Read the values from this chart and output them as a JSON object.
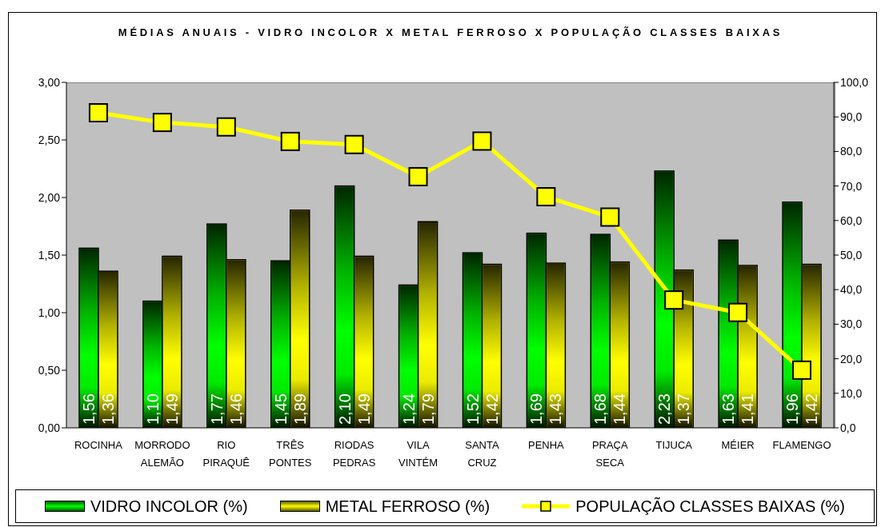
{
  "chart_data": {
    "type": "bar",
    "title": "MÉDIAS ANUAIS - VIDRO INCOLOR X METAL FERROSO X POPULAÇÃO CLASSES BAIXAS",
    "categories": [
      "ROCINHA",
      "MORRODO ALEMÃO",
      "RIO PIRAQUÊ",
      "TRÊS PONTES",
      "RIODAS PEDRAS",
      "VILA VINTÉM",
      "SANTA CRUZ",
      "PENHA",
      "PRAÇA SECA",
      "TIJUCA",
      "MÉIER",
      "FLAMENGO"
    ],
    "series": [
      {
        "name": "VIDRO INCOLOR (%)",
        "color": "#00ff00",
        "values": [
          1.56,
          1.1,
          1.77,
          1.45,
          2.1,
          1.24,
          1.52,
          1.69,
          1.68,
          2.23,
          1.63,
          1.96
        ],
        "value_labels": [
          "1,56",
          "1,10",
          "1,77",
          "1,45",
          "2,10",
          "1,24",
          "1,52",
          "1,69",
          "1,68",
          "2,23",
          "1,63",
          "1,96"
        ]
      },
      {
        "name": "METAL FERROSO (%)",
        "color": "#ffff00",
        "values": [
          1.36,
          1.49,
          1.46,
          1.89,
          1.49,
          1.79,
          1.42,
          1.43,
          1.44,
          1.37,
          1.41,
          1.42
        ],
        "value_labels": [
          "1,36",
          "1,49",
          "1,46",
          "1,89",
          "1,49",
          "1,79",
          "1,42",
          "1,43",
          "1,44",
          "1,37",
          "1,41",
          "1,42"
        ]
      },
      {
        "name": "POPULAÇÃO CLASSES BAIXAS (%)",
        "type": "line",
        "axis": "y2",
        "color": "#ffff00",
        "marker": "square",
        "values": [
          91.2,
          88.4,
          87.1,
          82.9,
          82.0,
          72.7,
          83.0,
          66.9,
          61.0,
          37.0,
          33.4,
          16.7
        ]
      }
    ],
    "ylim": [
      0,
      3
    ],
    "yticks": [
      {
        "value": 0,
        "label": "0,00"
      },
      {
        "value": 0.5,
        "label": "0,50"
      },
      {
        "value": 1,
        "label": "1,00"
      },
      {
        "value": 1.5,
        "label": "1,50"
      },
      {
        "value": 2,
        "label": "2,00"
      },
      {
        "value": 2.5,
        "label": "2,50"
      },
      {
        "value": 3,
        "label": "3,00"
      }
    ],
    "y2lim": [
      0,
      100
    ],
    "y2ticks": [
      {
        "value": 0,
        "label": "0,0"
      },
      {
        "value": 10,
        "label": "10,0"
      },
      {
        "value": 20,
        "label": "20,0"
      },
      {
        "value": 30,
        "label": "30,0"
      },
      {
        "value": 40,
        "label": "40,0"
      },
      {
        "value": 50,
        "label": "50,0"
      },
      {
        "value": 60,
        "label": "60,0"
      },
      {
        "value": 70,
        "label": "70,0"
      },
      {
        "value": 80,
        "label": "80,0"
      },
      {
        "value": 90,
        "label": "90,0"
      },
      {
        "value": 100,
        "label": "100,0"
      }
    ],
    "legend": "bottom"
  }
}
